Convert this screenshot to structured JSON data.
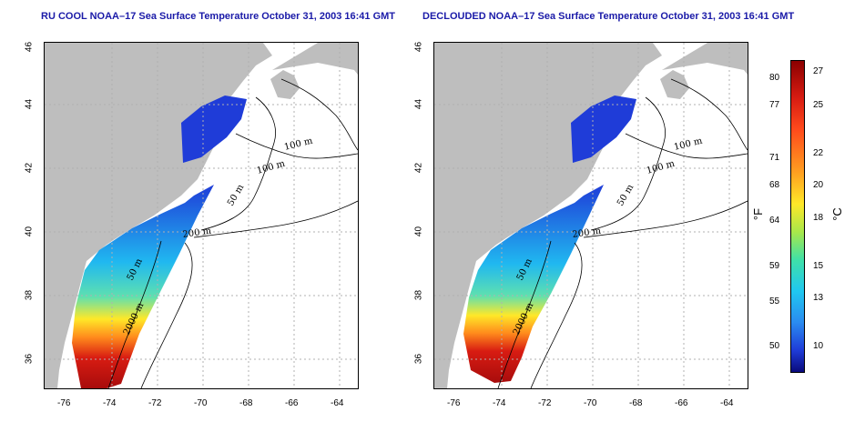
{
  "titles": {
    "left": "RU COOL NOAA–17 Sea Surface Temperature October 31, 2003 16:41 GMT",
    "right": "DECLOUDED NOAA–17 Sea Surface Temperature October 31, 2003 16:41 GMT"
  },
  "axes": {
    "lon_ticks": [
      "-76",
      "-74",
      "-72",
      "-70",
      "-68",
      "-66",
      "-64"
    ],
    "lat_ticks": [
      "46",
      "44",
      "42",
      "40",
      "38",
      "36"
    ]
  },
  "contours": {
    "left": [
      "100 m",
      "100 m",
      "50 m",
      "200 m",
      "50 m",
      "2000 m"
    ],
    "right": [
      "100 m",
      "100 m",
      "50 m",
      "200 m",
      "50 m",
      "2000 m"
    ]
  },
  "colorbar": {
    "fahrenheit": [
      "80",
      "77",
      "71",
      "68",
      "64",
      "59",
      "55",
      "50"
    ],
    "celsius": [
      "27",
      "25",
      "22",
      "20",
      "18",
      "15",
      "13",
      "10"
    ],
    "f_unit": "°F",
    "c_unit": "°C"
  },
  "colors": {
    "land": "#bebebe",
    "grid": "#b0b0b0",
    "contour": "#000000",
    "title": "#1a1aa8"
  }
}
